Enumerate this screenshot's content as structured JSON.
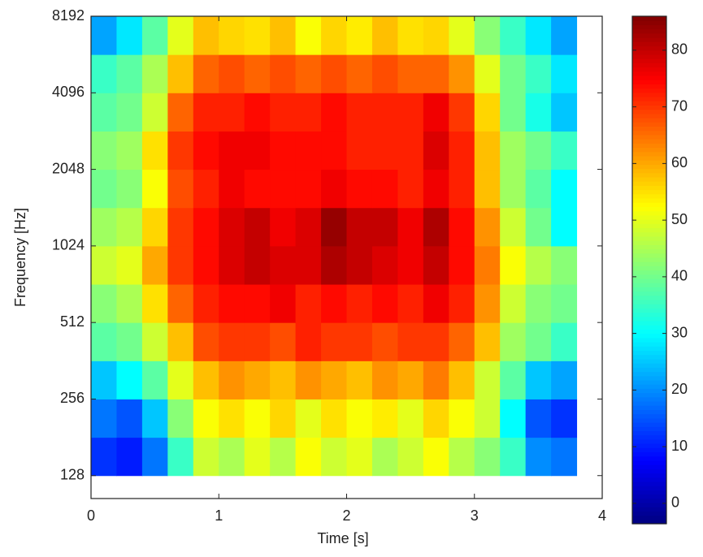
{
  "chart_data": {
    "type": "heatmap",
    "colormap": "jet",
    "xlabel": "Time [s]",
    "ylabel": "Frequency [Hz]",
    "xlim": [
      0,
      4
    ],
    "xticks": [
      0,
      1,
      2,
      3,
      4
    ],
    "ylim": [
      104,
      8192
    ],
    "ylog": true,
    "yticks": [
      128,
      256,
      512,
      1024,
      2048,
      4096,
      8192
    ],
    "clim": [
      -3.6,
      86
    ],
    "cticks": [
      0,
      10,
      20,
      30,
      40,
      50,
      60,
      70,
      80
    ],
    "xbins": [
      0,
      0.2,
      0.4,
      0.6,
      0.8,
      1.0,
      1.2,
      1.4,
      1.6,
      1.8,
      2.0,
      2.2,
      2.4,
      2.6,
      2.8,
      3.0,
      3.2,
      3.4,
      3.6,
      3.8
    ],
    "ybins": [
      128,
      181,
      256,
      362,
      512,
      724,
      1024,
      1448,
      2048,
      2896,
      4096,
      5793,
      8192
    ],
    "z": [
      [
        12,
        10,
        18,
        35,
        48,
        45,
        50,
        46,
        52,
        48,
        50,
        45,
        48,
        52,
        46,
        42,
        35,
        20,
        18
      ],
      [
        18,
        15,
        25,
        42,
        52,
        55,
        52,
        56,
        50,
        55,
        52,
        54,
        50,
        56,
        52,
        48,
        30,
        15,
        12
      ],
      [
        25,
        30,
        38,
        50,
        58,
        62,
        60,
        58,
        62,
        60,
        58,
        62,
        60,
        64,
        58,
        48,
        38,
        25,
        22
      ],
      [
        38,
        40,
        48,
        58,
        68,
        70,
        70,
        68,
        72,
        70,
        70,
        68,
        70,
        70,
        66,
        58,
        44,
        40,
        35
      ],
      [
        42,
        45,
        55,
        66,
        72,
        74,
        74,
        76,
        72,
        74,
        72,
        74,
        72,
        76,
        72,
        62,
        48,
        42,
        40
      ],
      [
        48,
        50,
        60,
        70,
        74,
        78,
        80,
        78,
        78,
        82,
        80,
        78,
        76,
        80,
        74,
        64,
        52,
        46,
        42
      ],
      [
        44,
        46,
        56,
        70,
        74,
        78,
        80,
        76,
        78,
        84,
        80,
        80,
        76,
        82,
        74,
        62,
        48,
        40,
        30
      ],
      [
        40,
        42,
        52,
        68,
        72,
        76,
        74,
        74,
        74,
        76,
        74,
        74,
        72,
        76,
        72,
        58,
        44,
        38,
        30
      ],
      [
        42,
        44,
        55,
        70,
        74,
        76,
        76,
        74,
        74,
        74,
        72,
        72,
        72,
        78,
        72,
        58,
        44,
        40,
        35
      ],
      [
        38,
        40,
        48,
        66,
        72,
        72,
        74,
        72,
        72,
        74,
        72,
        72,
        72,
        76,
        70,
        56,
        40,
        32,
        25
      ],
      [
        35,
        38,
        45,
        58,
        66,
        68,
        66,
        68,
        66,
        68,
        66,
        68,
        66,
        66,
        62,
        50,
        40,
        35,
        28
      ],
      [
        22,
        28,
        38,
        50,
        58,
        56,
        55,
        58,
        52,
        56,
        54,
        58,
        55,
        56,
        50,
        42,
        35,
        28,
        22
      ]
    ]
  }
}
